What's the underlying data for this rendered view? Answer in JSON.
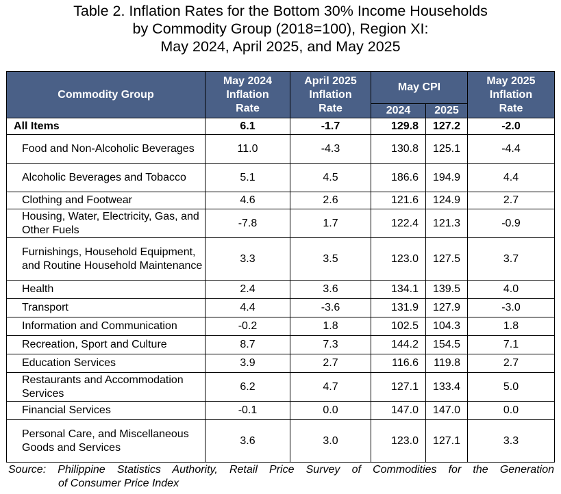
{
  "title": {
    "line1": "Table 2. Inflation Rates for the Bottom 30% Income Households",
    "line2": "by Commodity Group (2018=100), Region XI:",
    "line3": "May 2024, April 2025, and May 2025"
  },
  "header": {
    "commodity_group": "Commodity Group",
    "may2024_l1": "May 2024",
    "may2024_l2": "Inflation",
    "may2024_l3": "Rate",
    "apr2025_l1": "April 2025",
    "apr2025_l2": "Inflation",
    "apr2025_l3": "Rate",
    "may_cpi": "May CPI",
    "cpi_2024": "2024",
    "cpi_2025": "2025",
    "may2025_l1": "May 2025",
    "may2025_l2": "Inflation",
    "may2025_l3": "Rate"
  },
  "rows": [
    {
      "label": "All Items",
      "may2024": "6.1",
      "apr2025": "-1.7",
      "cpi2024": "129.8",
      "cpi2025": "127.2",
      "may2025": "-2.0"
    },
    {
      "label": "Food and Non-Alcoholic Beverages",
      "may2024": "11.0",
      "apr2025": "-4.3",
      "cpi2024": "130.8",
      "cpi2025": "125.1",
      "may2025": "-4.4"
    },
    {
      "label": "Alcoholic Beverages and Tobacco",
      "may2024": "5.1",
      "apr2025": "4.5",
      "cpi2024": "186.6",
      "cpi2025": "194.9",
      "may2025": "4.4"
    },
    {
      "label": "Clothing and Footwear",
      "may2024": "4.6",
      "apr2025": "2.6",
      "cpi2024": "121.6",
      "cpi2025": "124.9",
      "may2025": "2.7"
    },
    {
      "label": "Housing, Water, Electricity, Gas, and Other Fuels",
      "may2024": "-7.8",
      "apr2025": "1.7",
      "cpi2024": "122.4",
      "cpi2025": "121.3",
      "may2025": "-0.9"
    },
    {
      "label": "Furnishings, Household Equipment, and Routine Household Maintenance",
      "may2024": "3.3",
      "apr2025": "3.5",
      "cpi2024": "123.0",
      "cpi2025": "127.5",
      "may2025": "3.7"
    },
    {
      "label": "Health",
      "may2024": "2.4",
      "apr2025": "3.6",
      "cpi2024": "134.1",
      "cpi2025": "139.5",
      "may2025": "4.0"
    },
    {
      "label": "Transport",
      "may2024": "4.4",
      "apr2025": "-3.6",
      "cpi2024": "131.9",
      "cpi2025": "127.9",
      "may2025": "-3.0"
    },
    {
      "label": "Information and Communication",
      "may2024": "-0.2",
      "apr2025": "1.8",
      "cpi2024": "102.5",
      "cpi2025": "104.3",
      "may2025": "1.8"
    },
    {
      "label": "Recreation, Sport and Culture",
      "may2024": "8.7",
      "apr2025": "7.3",
      "cpi2024": "144.2",
      "cpi2025": "154.5",
      "may2025": "7.1"
    },
    {
      "label": "Education Services",
      "may2024": "3.9",
      "apr2025": "2.7",
      "cpi2024": "116.6",
      "cpi2025": "119.8",
      "may2025": "2.7"
    },
    {
      "label": "Restaurants and Accommodation Services",
      "may2024": "6.2",
      "apr2025": "4.7",
      "cpi2024": "127.1",
      "cpi2025": "133.4",
      "may2025": "5.0"
    },
    {
      "label": "Financial Services",
      "may2024": "-0.1",
      "apr2025": "0.0",
      "cpi2024": "147.0",
      "cpi2025": "147.0",
      "may2025": "0.0"
    },
    {
      "label": "Personal Care, and Miscellaneous Goods and Services",
      "may2024": "3.6",
      "apr2025": "3.0",
      "cpi2024": "123.0",
      "cpi2025": "127.1",
      "may2025": "3.3"
    }
  ],
  "source": {
    "line1": "Source: Philippine Statistics Authority, Retail Price Survey of Commodities for the Generation",
    "line2": "of Consumer Price Index"
  },
  "colors": {
    "header_bg": "#4a6087",
    "header_text": "#ffffff",
    "border": "#000000"
  }
}
